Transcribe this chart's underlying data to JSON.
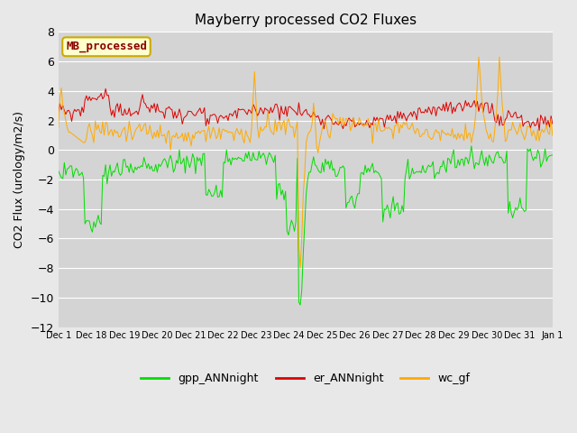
{
  "title": "Mayberry processed CO2 Fluxes",
  "ylabel": "CO2 Flux (urology/m2/s)",
  "ylim": [
    -12,
    8
  ],
  "yticks": [
    -12,
    -10,
    -8,
    -6,
    -4,
    -2,
    0,
    2,
    4,
    6,
    8
  ],
  "fig_bg_color": "#e8e8e8",
  "plot_bg_color": "#d4d4d4",
  "grid_color": "#ffffff",
  "line_colors": {
    "gpp": "#00dd00",
    "er": "#dd0000",
    "wc": "#ffaa00"
  },
  "legend_labels": [
    "gpp_ANNnight",
    "er_ANNnight",
    "wc_gf"
  ],
  "inset_label": "MB_processed",
  "inset_text_color": "#8b0000",
  "inset_bg_color": "#ffffcc",
  "inset_edge_color": "#ccaa00",
  "n_points": 336,
  "xtick_labels": [
    "Dec 1",
    "Dec 18",
    "Dec 19",
    "Dec 20",
    "Dec 21",
    "Dec 22",
    "Dec 23",
    "Dec 24",
    "Dec 25",
    "Dec 26",
    "Dec 27",
    "Dec 28",
    "Dec 29",
    "Dec 30",
    "Dec 31",
    "Jan 1"
  ]
}
